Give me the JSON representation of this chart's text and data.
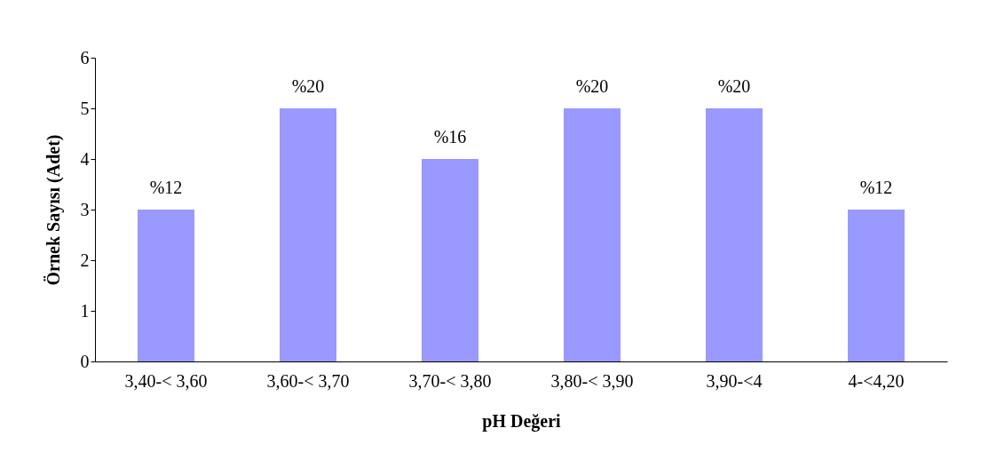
{
  "chart_data": {
    "type": "bar",
    "xlabel": "pH Değeri",
    "ylabel": "Örnek Sayısı (Adet)",
    "categories": [
      "3,40-< 3,60",
      "3,60-< 3,70",
      "3,70-< 3,80",
      "3,80-< 3,90",
      "3,90-<4",
      "4-<4,20"
    ],
    "values": [
      3,
      5,
      4,
      5,
      5,
      3
    ],
    "annotations": [
      {
        "text": "%12",
        "x": "3,40-< 3,60",
        "y": 3
      },
      {
        "text": "%20",
        "x": "3,60-< 3,70",
        "y": 5
      },
      {
        "text": "%16",
        "x": "3,70-< 3,80",
        "y": 4
      },
      {
        "text": "%20",
        "x": "3,80-< 3,90",
        "y": 5
      },
      {
        "text": "%20",
        "x": "3,90-<4",
        "y": 5
      },
      {
        "text": "%12",
        "x": "4-<4,20",
        "y": 3
      }
    ],
    "color": "#9999ff",
    "ylim": [
      0,
      6
    ],
    "yticks": [
      0,
      1,
      2,
      3,
      4,
      5,
      6
    ],
    "grid": false
  }
}
